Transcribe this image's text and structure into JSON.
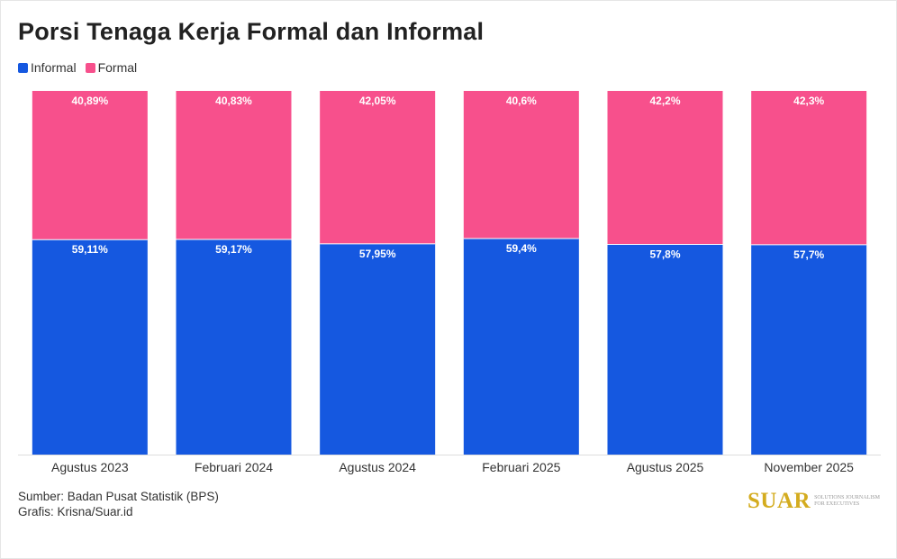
{
  "title": "Porsi Tenaga Kerja Formal dan Informal",
  "legend": [
    {
      "name": "Informal",
      "color": "#1558e0"
    },
    {
      "name": "Formal",
      "color": "#f7508c"
    }
  ],
  "chart_data": {
    "type": "bar",
    "stacked": true,
    "percent_stacked": true,
    "categories": [
      "Agustus 2023",
      "Februari 2024",
      "Agustus 2024",
      "Februari 2025",
      "Agustus 2025",
      "November 2025"
    ],
    "series": [
      {
        "name": "Informal",
        "color": "#1558e0",
        "values": [
          59.11,
          59.17,
          57.95,
          59.4,
          57.8,
          57.7
        ],
        "labels": [
          "59,11%",
          "59,17%",
          "57,95%",
          "59,4%",
          "57,8%",
          "57,7%"
        ]
      },
      {
        "name": "Formal",
        "color": "#f7508c",
        "values": [
          40.89,
          40.83,
          42.05,
          40.6,
          42.2,
          42.3
        ],
        "labels": [
          "40,89%",
          "40,83%",
          "42,05%",
          "40,6%",
          "42,2%",
          "42,3%"
        ]
      }
    ],
    "ylim": [
      0,
      100
    ],
    "legend_position": "top-left"
  },
  "source": {
    "line1": "Sumber: Badan Pusat Statistik (BPS)",
    "line2": "Grafis: Krisna/Suar.id"
  },
  "logo": {
    "name": "SUAR",
    "tagline": "SOLUTIONS JOURNALISM FOR EXECUTIVES"
  }
}
